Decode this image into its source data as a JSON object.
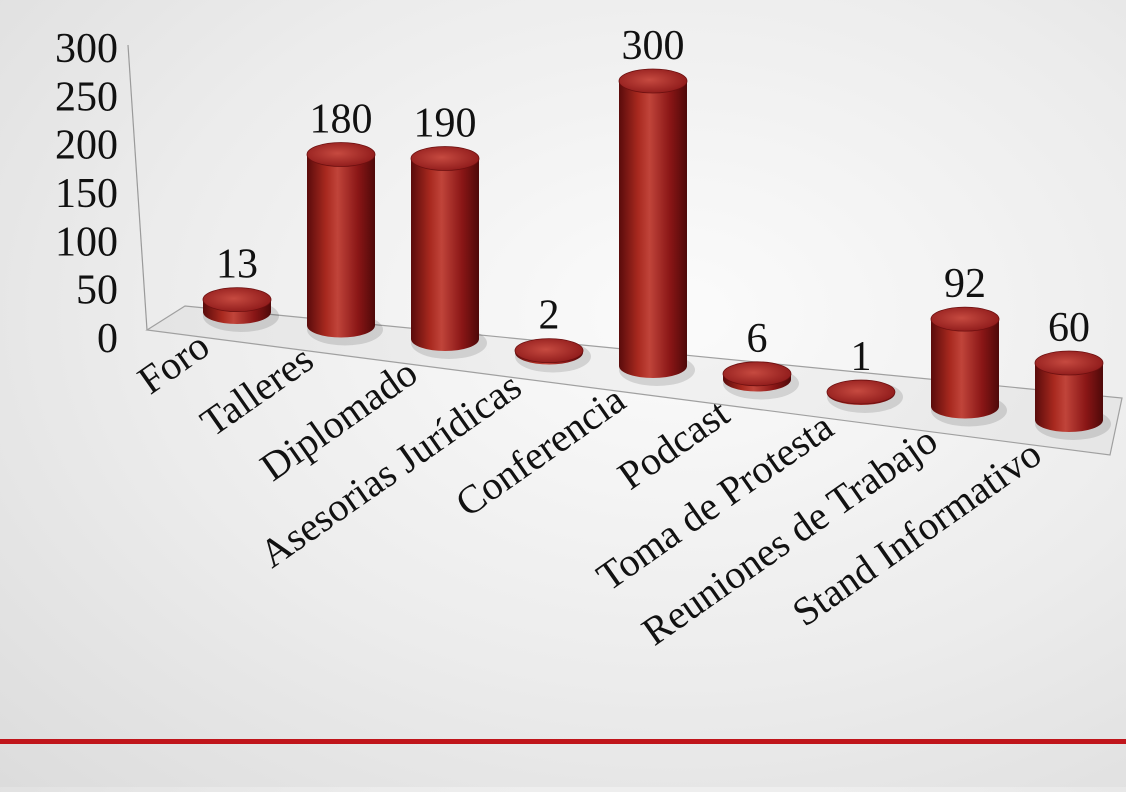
{
  "colors": {
    "bar": "#8e1a1a",
    "bar_light": "#b83a33",
    "bar_dark": "#5a0b0b",
    "rule": "#c0151b"
  },
  "chart_data": {
    "type": "bar",
    "title": "",
    "xlabel": "",
    "ylabel": "",
    "ylim": [
      0,
      300
    ],
    "yticks": [
      "0",
      "50",
      "100",
      "150",
      "200",
      "250",
      "300"
    ],
    "grid": false,
    "style": "3d-cylinder",
    "categories": [
      "Foro",
      "Talleres",
      "Diplomado",
      "Asesorias Jurídicas",
      "Conferencia",
      "Podcast",
      "Toma de Protesta",
      "Reuniones de Trabajo",
      "Stand Informativo"
    ],
    "values": [
      13,
      180,
      190,
      2,
      300,
      6,
      1,
      92,
      60
    ],
    "data_labels": [
      "13",
      "180",
      "190",
      "2",
      "300",
      "6",
      "1",
      "92",
      "60"
    ]
  }
}
